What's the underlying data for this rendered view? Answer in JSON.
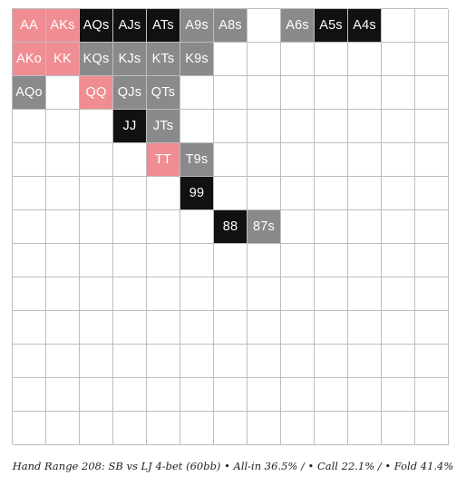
{
  "caption": "Hand Range 208: SB vs LJ 4-bet (60bb) • All-in 36.5% / • Call 22.1% / • Fold 41.4%",
  "colors": {
    "all_in": "#111111",
    "call": "#8a8a8d",
    "fold": "#f08d93",
    "empty": "#ffffff"
  },
  "matrix": {
    "rows": 13,
    "cols": 13,
    "hands": [
      {
        "label": "AA",
        "row": 0,
        "col": 0,
        "action": "fold"
      },
      {
        "label": "AKs",
        "row": 0,
        "col": 1,
        "action": "fold"
      },
      {
        "label": "AQs",
        "row": 0,
        "col": 2,
        "action": "all_in"
      },
      {
        "label": "AJs",
        "row": 0,
        "col": 3,
        "action": "all_in"
      },
      {
        "label": "ATs",
        "row": 0,
        "col": 4,
        "action": "all_in"
      },
      {
        "label": "A9s",
        "row": 0,
        "col": 5,
        "action": "call"
      },
      {
        "label": "A8s",
        "row": 0,
        "col": 6,
        "action": "call"
      },
      {
        "label": "A6s",
        "row": 0,
        "col": 8,
        "action": "call"
      },
      {
        "label": "A5s",
        "row": 0,
        "col": 9,
        "action": "all_in"
      },
      {
        "label": "A4s",
        "row": 0,
        "col": 10,
        "action": "all_in"
      },
      {
        "label": "AKo",
        "row": 1,
        "col": 0,
        "action": "fold"
      },
      {
        "label": "KK",
        "row": 1,
        "col": 1,
        "action": "fold"
      },
      {
        "label": "KQs",
        "row": 1,
        "col": 2,
        "action": "call"
      },
      {
        "label": "KJs",
        "row": 1,
        "col": 3,
        "action": "call"
      },
      {
        "label": "KTs",
        "row": 1,
        "col": 4,
        "action": "call"
      },
      {
        "label": "K9s",
        "row": 1,
        "col": 5,
        "action": "call"
      },
      {
        "label": "AQo",
        "row": 2,
        "col": 0,
        "action": "call"
      },
      {
        "label": "QQ",
        "row": 2,
        "col": 2,
        "action": "fold"
      },
      {
        "label": "QJs",
        "row": 2,
        "col": 3,
        "action": "call"
      },
      {
        "label": "QTs",
        "row": 2,
        "col": 4,
        "action": "call"
      },
      {
        "label": "JJ",
        "row": 3,
        "col": 3,
        "action": "all_in"
      },
      {
        "label": "JTs",
        "row": 3,
        "col": 4,
        "action": "call"
      },
      {
        "label": "TT",
        "row": 4,
        "col": 4,
        "action": "fold"
      },
      {
        "label": "T9s",
        "row": 4,
        "col": 5,
        "action": "call"
      },
      {
        "label": "99",
        "row": 5,
        "col": 5,
        "action": "all_in"
      },
      {
        "label": "88",
        "row": 6,
        "col": 6,
        "action": "all_in"
      },
      {
        "label": "87s",
        "row": 6,
        "col": 7,
        "action": "call"
      }
    ]
  }
}
